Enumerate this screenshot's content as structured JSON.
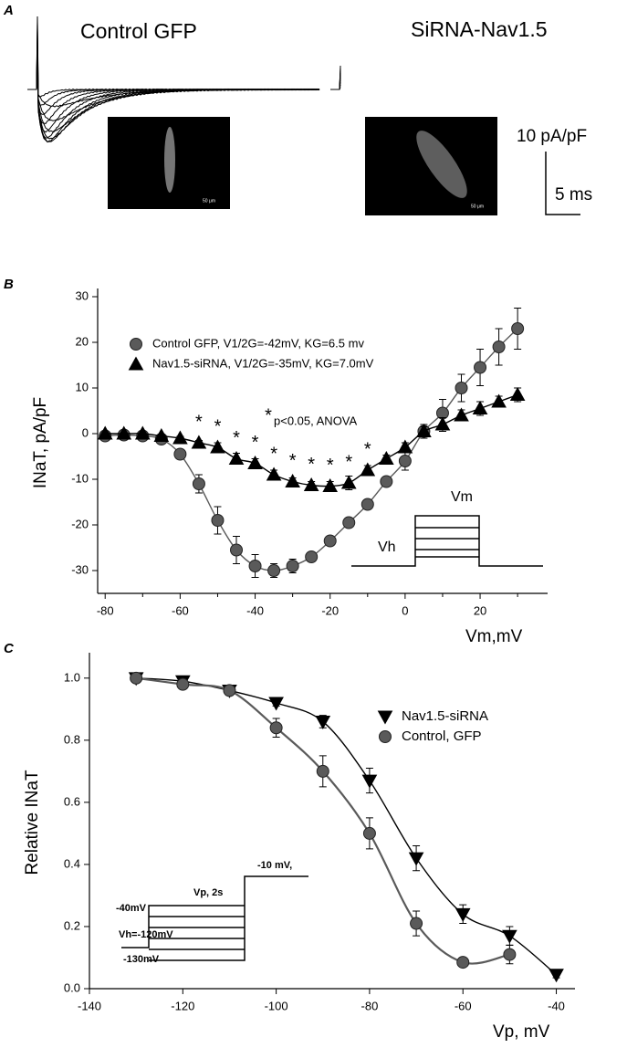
{
  "panel_a": {
    "label": "A",
    "left_title": "Control GFP",
    "right_title": "SiRNA-Nav1.5",
    "scale_current": "10 pA/pF",
    "scale_time": "5 ms",
    "image_scale_left": "50 μm",
    "image_scale_right": "50 μm"
  },
  "chart_data": [
    {
      "type": "scatter",
      "panel_label": "B",
      "x_label": "Vm,mV",
      "y_label": "INaT, pA/pF",
      "xlim": [
        -82,
        38
      ],
      "ylim": [
        -35,
        31
      ],
      "xticks": [
        -80,
        -60,
        -40,
        -20,
        0,
        20
      ],
      "xminorticks": [
        -70,
        -50,
        -30,
        -10,
        10,
        30
      ],
      "yticks": [
        -30,
        -20,
        -10,
        0,
        10,
        20,
        30
      ],
      "legend": "upper left",
      "series": [
        {
          "name": "Control GFP, V1/2G=-42mV, KG=6.5 mv",
          "color": "#5a5a5a",
          "marker": "circle",
          "x": [
            -80,
            -75,
            -70,
            -65,
            -60,
            -55,
            -50,
            -45,
            -40,
            -35,
            -30,
            -25,
            -20,
            -15,
            -10,
            -5,
            0,
            5,
            10,
            15,
            20,
            25,
            30
          ],
          "values": [
            -0.5,
            -0.3,
            -0.5,
            -1.2,
            -4.5,
            -11,
            -19,
            -25.5,
            -29,
            -30,
            -29,
            -27,
            -23.5,
            -19.5,
            -15.5,
            -10.5,
            -6,
            0.5,
            4.5,
            10,
            14.5,
            19,
            23
          ],
          "errors": [
            0.3,
            0.3,
            0.3,
            0.5,
            0.8,
            2,
            3,
            3,
            2.5,
            1.5,
            1.5,
            1,
            1,
            1,
            1,
            1,
            2,
            1.5,
            3,
            3,
            4,
            4,
            4.5
          ]
        },
        {
          "name": "Nav1.5-siRNA, V1/2G=-35mV, KG=7.0mV",
          "color": "#000000",
          "marker": "triangle-up",
          "x": [
            -80,
            -75,
            -70,
            -65,
            -60,
            -55,
            -50,
            -45,
            -40,
            -35,
            -30,
            -25,
            -20,
            -15,
            -10,
            -5,
            0,
            5,
            10,
            15,
            20,
            25,
            30
          ],
          "values": [
            0,
            0,
            0,
            -0.5,
            -1,
            -2,
            -3,
            -5.5,
            -6.5,
            -9,
            -10.5,
            -11.3,
            -11.5,
            -10.8,
            -8,
            -5.5,
            -3,
            0.5,
            2,
            4,
            5.5,
            7,
            8.5
          ],
          "errors": [
            0.2,
            0.2,
            0.2,
            0.3,
            0.4,
            0.5,
            1,
            1.2,
            1,
            1,
            0.8,
            0.8,
            1,
            1.5,
            1,
            0.8,
            1,
            1,
            1.5,
            1.2,
            1.5,
            1.2,
            1.5
          ]
        }
      ],
      "significance_marker": "*",
      "significance_note": "p<0.05, ANOVA",
      "significant_x": [
        -55,
        -50,
        -45,
        -40,
        -35,
        -30,
        -25,
        -20,
        -15,
        -10
      ],
      "inset_labels": [
        "Vh",
        "Vm"
      ]
    },
    {
      "type": "scatter",
      "panel_label": "C",
      "x_label": "Vp, mV",
      "y_label": "Relative INaT",
      "xlim": [
        -140,
        -36
      ],
      "ylim": [
        0,
        1.07
      ],
      "xticks": [
        -140,
        -120,
        -100,
        -80,
        -60,
        -40
      ],
      "yticks": [
        {
          "value": 0,
          "label": "0.0"
        },
        0.2,
        0.4,
        0.6,
        0.8,
        {
          "value": 1,
          "label": "1.0"
        }
      ],
      "legend": "upper right",
      "series": [
        {
          "name": "Nav1.5-siRNA",
          "color": "#000000",
          "marker": "triangle-down",
          "x": [
            -130,
            -120,
            -110,
            -100,
            -90,
            -80,
            -70,
            -60,
            -50,
            -40
          ],
          "values": [
            1.0,
            0.99,
            0.96,
            0.92,
            0.86,
            0.67,
            0.42,
            0.24,
            0.17,
            0.045
          ],
          "errors": [
            0.01,
            0.01,
            0.01,
            0.01,
            0.02,
            0.04,
            0.04,
            0.03,
            0.03,
            0.01
          ]
        },
        {
          "name": "Control, GFP",
          "color": "#5a5a5a",
          "marker": "circle",
          "x": [
            -130,
            -120,
            -110,
            -100,
            -90,
            -80,
            -70,
            -60,
            -50
          ],
          "values": [
            1.0,
            0.98,
            0.96,
            0.84,
            0.7,
            0.5,
            0.21,
            0.085,
            0.11
          ],
          "errors": [
            0.01,
            0.01,
            0.01,
            0.03,
            0.05,
            0.05,
            0.04,
            0.015,
            0.03
          ]
        }
      ],
      "inset_labels": [
        "-10 mV,",
        "Vp, 2s",
        "-40mV",
        "Vh=-120mV",
        "-130mV"
      ]
    }
  ]
}
